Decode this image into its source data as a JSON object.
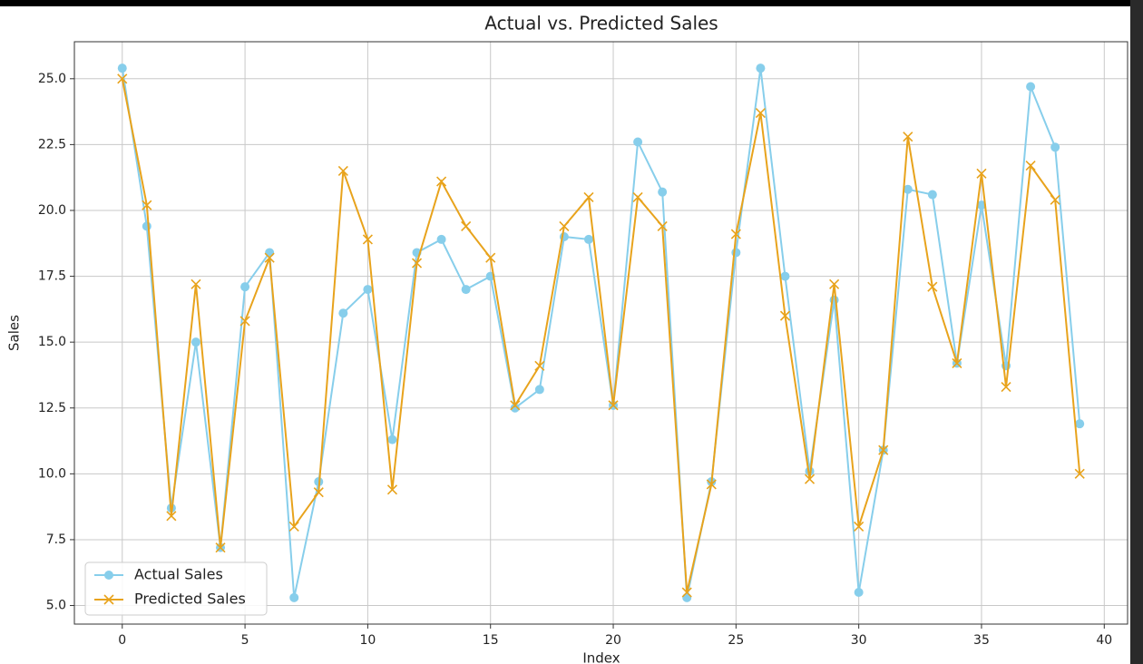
{
  "chart_data": {
    "type": "line",
    "title": "Actual vs. Predicted Sales",
    "xlabel": "Index",
    "ylabel": "Sales",
    "x": [
      0,
      1,
      2,
      3,
      4,
      5,
      6,
      7,
      8,
      9,
      10,
      11,
      12,
      13,
      14,
      15,
      16,
      17,
      18,
      19,
      20,
      21,
      22,
      23,
      24,
      25,
      26,
      27,
      28,
      29,
      30,
      31,
      32,
      33,
      34,
      35,
      36,
      37,
      38,
      39
    ],
    "series": [
      {
        "name": "Actual Sales",
        "color": "#87ceeb",
        "marker": "o",
        "values": [
          25.4,
          19.4,
          8.7,
          15.0,
          7.2,
          17.1,
          18.4,
          5.3,
          9.7,
          16.1,
          17.0,
          11.3,
          18.4,
          18.9,
          17.0,
          17.5,
          12.5,
          13.2,
          19.0,
          18.9,
          12.6,
          22.6,
          20.7,
          5.3,
          9.7,
          18.4,
          25.4,
          17.5,
          10.1,
          16.6,
          5.5,
          10.9,
          20.8,
          20.6,
          14.2,
          20.2,
          14.1,
          24.7,
          22.4,
          11.9
        ]
      },
      {
        "name": "Predicted Sales",
        "color": "#e8a31c",
        "marker": "x",
        "values": [
          25.0,
          20.2,
          8.4,
          17.2,
          7.2,
          15.8,
          18.2,
          8.0,
          9.3,
          21.5,
          18.9,
          9.4,
          18.0,
          21.1,
          19.4,
          18.2,
          12.6,
          14.1,
          19.4,
          20.5,
          12.6,
          20.5,
          19.4,
          5.5,
          9.6,
          19.1,
          23.7,
          16.0,
          9.8,
          17.2,
          8.0,
          10.9,
          22.8,
          17.1,
          14.2,
          21.4,
          13.3,
          21.7,
          20.4,
          10.0
        ]
      }
    ],
    "xlim": [
      -1.95,
      40.95
    ],
    "ylim": [
      4.295,
      26.405
    ],
    "xticks": [
      0,
      5,
      10,
      15,
      20,
      25,
      30,
      35,
      40
    ],
    "yticks": [
      {
        "value": 5,
        "label": "5.0"
      },
      7.5,
      {
        "value": 10,
        "label": "10.0"
      },
      12.5,
      {
        "value": 15,
        "label": "15.0"
      },
      17.5,
      {
        "value": 20,
        "label": "20.0"
      },
      22.5,
      {
        "value": 25,
        "label": "25.0"
      }
    ],
    "grid": true,
    "legend": "lower left"
  }
}
